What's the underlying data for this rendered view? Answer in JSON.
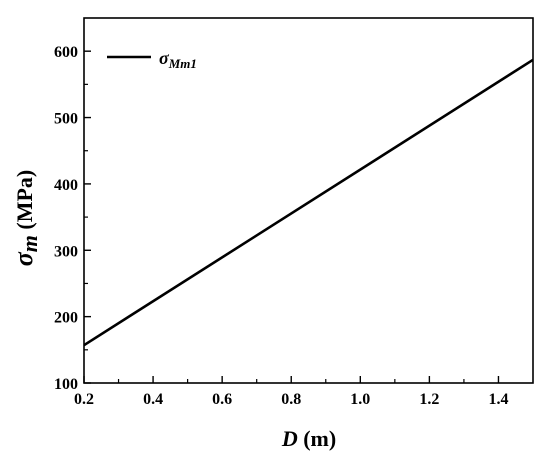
{
  "chart_data": {
    "type": "line",
    "x": [
      0.2,
      1.5
    ],
    "series": [
      {
        "name": "σMm1",
        "name_main": "σ",
        "name_sub": "Mm1",
        "values": [
          157,
          587
        ],
        "color": "#000000"
      }
    ],
    "xlabel": {
      "symbol": "D",
      "unit": " (m)"
    },
    "ylabel": {
      "symbol": "σ",
      "sub": "m",
      "unit": " (MPa)"
    },
    "xlim": [
      0.2,
      1.5
    ],
    "ylim": [
      100,
      650
    ],
    "xticks": [
      "0.2",
      "0.4",
      "0.6",
      "0.8",
      "1.0",
      "1.2",
      "1.4"
    ],
    "xtick_values": [
      0.2,
      0.4,
      0.6,
      0.8,
      1.0,
      1.2,
      1.4
    ],
    "xminor_values": [
      0.3,
      0.5,
      0.7,
      0.9,
      1.1,
      1.3
    ],
    "yticks": [
      "100",
      "200",
      "300",
      "400",
      "500",
      "600"
    ],
    "ytick_values": [
      100,
      200,
      300,
      400,
      500,
      600
    ],
    "yminor_values": [
      150,
      250,
      350,
      450,
      550
    ],
    "grid": false,
    "legend_position": "top-left"
  }
}
